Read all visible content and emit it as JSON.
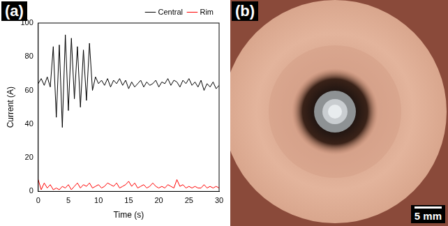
{
  "chart_data": {
    "type": "line",
    "panel_label": "(a)",
    "xlabel": "Time (s)",
    "ylabel": "Current (A)",
    "x": [
      0,
      0.5,
      1,
      1.5,
      2,
      2.5,
      3,
      3.5,
      4,
      4.5,
      5,
      5.5,
      6,
      6.5,
      7,
      7.5,
      8,
      8.5,
      9,
      9.5,
      10,
      10.5,
      11,
      11.5,
      12,
      12.5,
      13,
      13.5,
      14,
      14.5,
      15,
      15.5,
      16,
      16.5,
      17,
      17.5,
      18,
      18.5,
      19,
      19.5,
      20,
      20.5,
      21,
      21.5,
      22,
      22.5,
      23,
      23.5,
      24,
      24.5,
      25,
      25.5,
      26,
      26.5,
      27,
      27.5,
      28,
      28.5,
      29,
      29.5,
      30
    ],
    "series": [
      {
        "name": "Central",
        "color": "#000000",
        "values": [
          64,
          67,
          63,
          68,
          62,
          86,
          44,
          87,
          38,
          93,
          48,
          91,
          55,
          86,
          50,
          84,
          54,
          88,
          60,
          68,
          64,
          66,
          63,
          67,
          62,
          66,
          64,
          67,
          63,
          66,
          61,
          65,
          62,
          64,
          66,
          62,
          65,
          63,
          64,
          66,
          62,
          65,
          64,
          67,
          63,
          66,
          65,
          62,
          66,
          64,
          67,
          63,
          65,
          62,
          66,
          60,
          64,
          62,
          65,
          61,
          63
        ]
      },
      {
        "name": "Rim",
        "color": "#ff0000",
        "values": [
          7,
          1,
          5,
          2,
          4,
          1,
          2,
          1,
          3,
          2,
          4,
          1,
          3,
          5,
          2,
          4,
          3,
          5,
          2,
          3,
          4,
          2,
          3,
          5,
          4,
          3,
          5,
          2,
          3,
          4,
          6,
          3,
          5,
          2,
          3,
          4,
          2,
          3,
          5,
          3,
          2,
          3,
          2,
          4,
          3,
          2,
          7,
          3,
          4,
          2,
          3,
          2,
          3,
          2,
          2,
          4,
          2,
          3,
          2,
          3,
          2
        ]
      }
    ],
    "xlim": [
      0,
      30
    ],
    "xticks": [
      0,
      5,
      10,
      15,
      20,
      25,
      30
    ],
    "ylim": [
      0,
      100
    ],
    "yticks": [
      0,
      20,
      40,
      60,
      80,
      100
    ],
    "grid": false,
    "legend": "top-right"
  },
  "photo": {
    "panel_label": "(b)",
    "scale_bar": "5 mm"
  }
}
